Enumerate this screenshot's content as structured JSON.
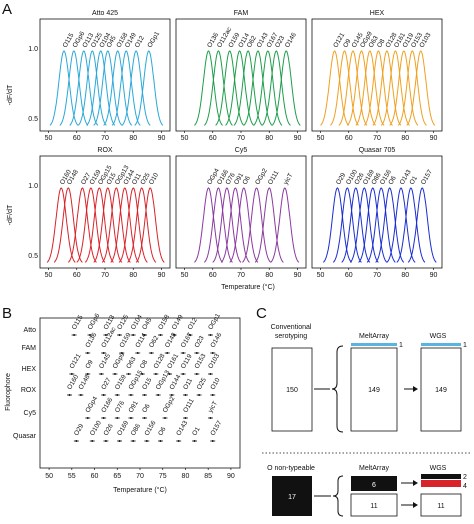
{
  "figure": {
    "panel_letters": [
      "A",
      "B",
      "C"
    ]
  },
  "panelA": {
    "ylabel": "-dF/dT",
    "xlabel": "Temperature (°C)",
    "yticks_top": [
      "1.0",
      "0.5"
    ],
    "yticks_bottom": [
      "1.0",
      "0.5"
    ],
    "xticks": [
      "50",
      "60",
      "70",
      "80",
      "90"
    ],
    "subplots": [
      {
        "title": "Atto 425",
        "color": "#2aa8d8",
        "labels": [
          "O115",
          "OGp6",
          "O113",
          "O125",
          "O104",
          "O45",
          "O158",
          "O149",
          "O12",
          "OGp1"
        ],
        "peaks": [
          55.5,
          59.0,
          62.5,
          65.5,
          68.5,
          71.0,
          74.5,
          77.5,
          81.0,
          85.5
        ]
      },
      {
        "title": "FAM",
        "color": "#1e9e4a",
        "labels": [
          "O136",
          "O112ac",
          "O159",
          "O114",
          "O62",
          "O143",
          "O167",
          "O23",
          "O146"
        ],
        "peaks": [
          58.5,
          62.0,
          66.0,
          69.5,
          72.5,
          76.0,
          79.5,
          82.5,
          86.0
        ]
      },
      {
        "title": "HEX",
        "color": "#f0a020",
        "labels": [
          "O121",
          "O9",
          "O145",
          "OGp9",
          "O63",
          "O8",
          "O128",
          "O161",
          "O119",
          "O153",
          "O103"
        ],
        "peaks": [
          55.0,
          58.5,
          61.5,
          64.5,
          67.5,
          70.5,
          73.5,
          76.5,
          79.5,
          82.5,
          85.5
        ]
      },
      {
        "title": "ROX",
        "color": "#d8232a",
        "labels": [
          "O160",
          "O148",
          "O27",
          "O159",
          "OGp15",
          "O15",
          "OGp13",
          "O144",
          "O11",
          "O25",
          "O10"
        ],
        "peaks": [
          54.5,
          57.0,
          62.0,
          65.0,
          68.0,
          71.0,
          74.0,
          77.0,
          80.0,
          83.0,
          86.0
        ]
      },
      {
        "title": "Cy5",
        "color": "#8a3aa0",
        "labels": [
          "OGp4",
          "O166",
          "O76",
          "O91",
          "O6",
          "OGp2",
          "O111",
          "yicT"
        ],
        "peaks": [
          58.5,
          62.0,
          65.0,
          68.0,
          71.0,
          75.5,
          80.0,
          85.5
        ]
      },
      {
        "title": "Quasar 705",
        "color": "#1a2ed0",
        "labels": [
          "O29",
          "O100",
          "O26",
          "O169",
          "O86",
          "O156",
          "O6",
          "O143",
          "O1",
          "O157"
        ],
        "peaks": [
          56.0,
          59.5,
          62.5,
          65.5,
          68.5,
          71.5,
          74.5,
          78.5,
          82.0,
          86.0
        ]
      }
    ]
  },
  "panelB": {
    "ylabel": "Fluorophore",
    "xlabel": "Temperature (°C)",
    "xticks": [
      "50",
      "55",
      "60",
      "65",
      "70",
      "75",
      "80",
      "85",
      "90"
    ],
    "rows": [
      {
        "name": "Atto",
        "labels": [
          "O115",
          "OGp6",
          "O113",
          "O125",
          "O104",
          "O45",
          "O158",
          "O149",
          "O12",
          "OGp1"
        ]
      },
      {
        "name": "FAM",
        "labels": [
          "O136",
          "O112ac",
          "O159",
          "O114",
          "O62",
          "O143",
          "O167",
          "O23",
          "O146"
        ]
      },
      {
        "name": "HEX",
        "labels": [
          "O121",
          "O9",
          "O145",
          "OGp9",
          "O63",
          "O8",
          "O128",
          "O161",
          "O119",
          "O153",
          "O103"
        ]
      },
      {
        "name": "ROX",
        "labels": [
          "O160",
          "O148",
          "O27",
          "O159",
          "OGp15",
          "O15",
          "OGp13",
          "O144",
          "O11",
          "O25",
          "O10"
        ]
      },
      {
        "name": "Cy5",
        "labels": [
          "OGp4",
          "O166",
          "O76",
          "O91",
          "O6",
          "OGp2",
          "O111",
          "yicT"
        ]
      },
      {
        "name": "Quasar",
        "labels": [
          "O29",
          "O100",
          "O26",
          "O169",
          "O86",
          "O156",
          "O6",
          "O143",
          "O1",
          "O157"
        ]
      }
    ]
  },
  "panelC": {
    "top": {
      "col1_label_line1": "Conventional",
      "col1_label_line2": "serotyping",
      "col2_label": "MeltArray",
      "col3_label": "WGS",
      "box1_value": "150",
      "box2_value": "149",
      "box3_value": "149",
      "side1": "1",
      "side2": "1"
    },
    "bottom": {
      "col1_label": "O non-typeable",
      "col2_label": "MeltArray",
      "col3_label": "WGS",
      "box1_value": "17",
      "box2a_value": "6",
      "box2b_value": "11",
      "box3_value": "11",
      "side_top": "2",
      "side_bottom": "4"
    },
    "colors": {
      "highlight_blue": "#5ab4e0",
      "black": "#111111",
      "red": "#d8232a"
    }
  }
}
